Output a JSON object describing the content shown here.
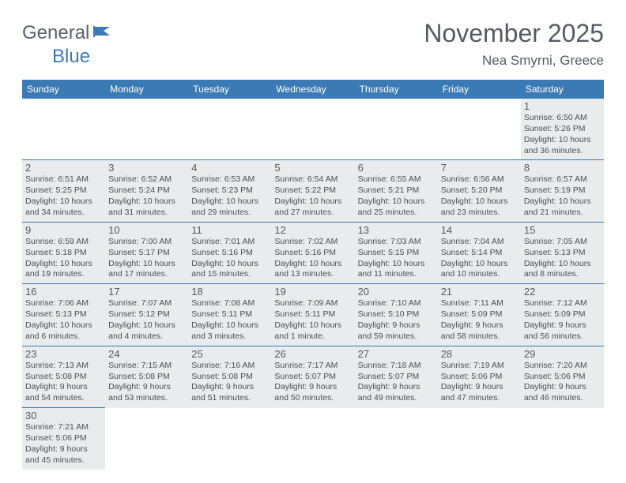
{
  "logo": {
    "word1": "General",
    "word2": "Blue"
  },
  "title": "November 2025",
  "location": "Nea Smyrni, Greece",
  "colors": {
    "header_bg": "#3c7ab5",
    "header_text": "#ffffff",
    "cell_bg": "#e9ebec",
    "cell_border": "#3c7ab5",
    "text": "#555b62",
    "logo_gray": "#5a6268",
    "logo_blue": "#3c7ab5",
    "page_bg": "#ffffff"
  },
  "daynames": [
    "Sunday",
    "Monday",
    "Tuesday",
    "Wednesday",
    "Thursday",
    "Friday",
    "Saturday"
  ],
  "weeks": [
    [
      null,
      null,
      null,
      null,
      null,
      null,
      {
        "n": "1",
        "sr": "Sunrise: 6:50 AM",
        "ss": "Sunset: 5:26 PM",
        "dl1": "Daylight: 10 hours",
        "dl2": "and 36 minutes."
      }
    ],
    [
      {
        "n": "2",
        "sr": "Sunrise: 6:51 AM",
        "ss": "Sunset: 5:25 PM",
        "dl1": "Daylight: 10 hours",
        "dl2": "and 34 minutes."
      },
      {
        "n": "3",
        "sr": "Sunrise: 6:52 AM",
        "ss": "Sunset: 5:24 PM",
        "dl1": "Daylight: 10 hours",
        "dl2": "and 31 minutes."
      },
      {
        "n": "4",
        "sr": "Sunrise: 6:53 AM",
        "ss": "Sunset: 5:23 PM",
        "dl1": "Daylight: 10 hours",
        "dl2": "and 29 minutes."
      },
      {
        "n": "5",
        "sr": "Sunrise: 6:54 AM",
        "ss": "Sunset: 5:22 PM",
        "dl1": "Daylight: 10 hours",
        "dl2": "and 27 minutes."
      },
      {
        "n": "6",
        "sr": "Sunrise: 6:55 AM",
        "ss": "Sunset: 5:21 PM",
        "dl1": "Daylight: 10 hours",
        "dl2": "and 25 minutes."
      },
      {
        "n": "7",
        "sr": "Sunrise: 6:56 AM",
        "ss": "Sunset: 5:20 PM",
        "dl1": "Daylight: 10 hours",
        "dl2": "and 23 minutes."
      },
      {
        "n": "8",
        "sr": "Sunrise: 6:57 AM",
        "ss": "Sunset: 5:19 PM",
        "dl1": "Daylight: 10 hours",
        "dl2": "and 21 minutes."
      }
    ],
    [
      {
        "n": "9",
        "sr": "Sunrise: 6:59 AM",
        "ss": "Sunset: 5:18 PM",
        "dl1": "Daylight: 10 hours",
        "dl2": "and 19 minutes."
      },
      {
        "n": "10",
        "sr": "Sunrise: 7:00 AM",
        "ss": "Sunset: 5:17 PM",
        "dl1": "Daylight: 10 hours",
        "dl2": "and 17 minutes."
      },
      {
        "n": "11",
        "sr": "Sunrise: 7:01 AM",
        "ss": "Sunset: 5:16 PM",
        "dl1": "Daylight: 10 hours",
        "dl2": "and 15 minutes."
      },
      {
        "n": "12",
        "sr": "Sunrise: 7:02 AM",
        "ss": "Sunset: 5:16 PM",
        "dl1": "Daylight: 10 hours",
        "dl2": "and 13 minutes."
      },
      {
        "n": "13",
        "sr": "Sunrise: 7:03 AM",
        "ss": "Sunset: 5:15 PM",
        "dl1": "Daylight: 10 hours",
        "dl2": "and 11 minutes."
      },
      {
        "n": "14",
        "sr": "Sunrise: 7:04 AM",
        "ss": "Sunset: 5:14 PM",
        "dl1": "Daylight: 10 hours",
        "dl2": "and 10 minutes."
      },
      {
        "n": "15",
        "sr": "Sunrise: 7:05 AM",
        "ss": "Sunset: 5:13 PM",
        "dl1": "Daylight: 10 hours",
        "dl2": "and 8 minutes."
      }
    ],
    [
      {
        "n": "16",
        "sr": "Sunrise: 7:06 AM",
        "ss": "Sunset: 5:13 PM",
        "dl1": "Daylight: 10 hours",
        "dl2": "and 6 minutes."
      },
      {
        "n": "17",
        "sr": "Sunrise: 7:07 AM",
        "ss": "Sunset: 5:12 PM",
        "dl1": "Daylight: 10 hours",
        "dl2": "and 4 minutes."
      },
      {
        "n": "18",
        "sr": "Sunrise: 7:08 AM",
        "ss": "Sunset: 5:11 PM",
        "dl1": "Daylight: 10 hours",
        "dl2": "and 3 minutes."
      },
      {
        "n": "19",
        "sr": "Sunrise: 7:09 AM",
        "ss": "Sunset: 5:11 PM",
        "dl1": "Daylight: 10 hours",
        "dl2": "and 1 minute."
      },
      {
        "n": "20",
        "sr": "Sunrise: 7:10 AM",
        "ss": "Sunset: 5:10 PM",
        "dl1": "Daylight: 9 hours",
        "dl2": "and 59 minutes."
      },
      {
        "n": "21",
        "sr": "Sunrise: 7:11 AM",
        "ss": "Sunset: 5:09 PM",
        "dl1": "Daylight: 9 hours",
        "dl2": "and 58 minutes."
      },
      {
        "n": "22",
        "sr": "Sunrise: 7:12 AM",
        "ss": "Sunset: 5:09 PM",
        "dl1": "Daylight: 9 hours",
        "dl2": "and 56 minutes."
      }
    ],
    [
      {
        "n": "23",
        "sr": "Sunrise: 7:13 AM",
        "ss": "Sunset: 5:08 PM",
        "dl1": "Daylight: 9 hours",
        "dl2": "and 54 minutes."
      },
      {
        "n": "24",
        "sr": "Sunrise: 7:15 AM",
        "ss": "Sunset: 5:08 PM",
        "dl1": "Daylight: 9 hours",
        "dl2": "and 53 minutes."
      },
      {
        "n": "25",
        "sr": "Sunrise: 7:16 AM",
        "ss": "Sunset: 5:08 PM",
        "dl1": "Daylight: 9 hours",
        "dl2": "and 51 minutes."
      },
      {
        "n": "26",
        "sr": "Sunrise: 7:17 AM",
        "ss": "Sunset: 5:07 PM",
        "dl1": "Daylight: 9 hours",
        "dl2": "and 50 minutes."
      },
      {
        "n": "27",
        "sr": "Sunrise: 7:18 AM",
        "ss": "Sunset: 5:07 PM",
        "dl1": "Daylight: 9 hours",
        "dl2": "and 49 minutes."
      },
      {
        "n": "28",
        "sr": "Sunrise: 7:19 AM",
        "ss": "Sunset: 5:06 PM",
        "dl1": "Daylight: 9 hours",
        "dl2": "and 47 minutes."
      },
      {
        "n": "29",
        "sr": "Sunrise: 7:20 AM",
        "ss": "Sunset: 5:06 PM",
        "dl1": "Daylight: 9 hours",
        "dl2": "and 46 minutes."
      }
    ],
    [
      {
        "n": "30",
        "sr": "Sunrise: 7:21 AM",
        "ss": "Sunset: 5:06 PM",
        "dl1": "Daylight: 9 hours",
        "dl2": "and 45 minutes."
      },
      null,
      null,
      null,
      null,
      null,
      null
    ]
  ]
}
